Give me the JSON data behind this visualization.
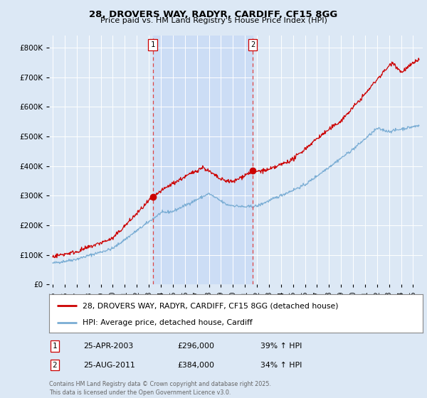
{
  "title": "28, DROVERS WAY, RADYR, CARDIFF, CF15 8GG",
  "subtitle": "Price paid vs. HM Land Registry's House Price Index (HPI)",
  "background_color": "#dce8f5",
  "plot_bg_color": "#dce8f5",
  "ylabel_ticks": [
    "£0",
    "£100K",
    "£200K",
    "£300K",
    "£400K",
    "£500K",
    "£600K",
    "£700K",
    "£800K"
  ],
  "ytick_values": [
    0,
    100000,
    200000,
    300000,
    400000,
    500000,
    600000,
    700000,
    800000
  ],
  "ylim": [
    0,
    840000
  ],
  "xlim_start": 1994.7,
  "xlim_end": 2025.8,
  "vline1_x": 2003.32,
  "vline2_x": 2011.65,
  "marker1_x": 2003.32,
  "marker1_y": 296000,
  "marker2_x": 2011.65,
  "marker2_y": 384000,
  "legend_line1": "28, DROVERS WAY, RADYR, CARDIFF, CF15 8GG (detached house)",
  "legend_line2": "HPI: Average price, detached house, Cardiff",
  "annotation1": [
    "1",
    "25-APR-2003",
    "£296,000",
    "39% ↑ HPI"
  ],
  "annotation2": [
    "2",
    "25-AUG-2011",
    "£384,000",
    "34% ↑ HPI"
  ],
  "footer": "Contains HM Land Registry data © Crown copyright and database right 2025.\nThis data is licensed under the Open Government Licence v3.0.",
  "line_color_red": "#cc0000",
  "line_color_blue": "#7aadd4",
  "vline_color": "#dd4444",
  "span_color": "#ccddf5",
  "marker_color": "#cc0000"
}
